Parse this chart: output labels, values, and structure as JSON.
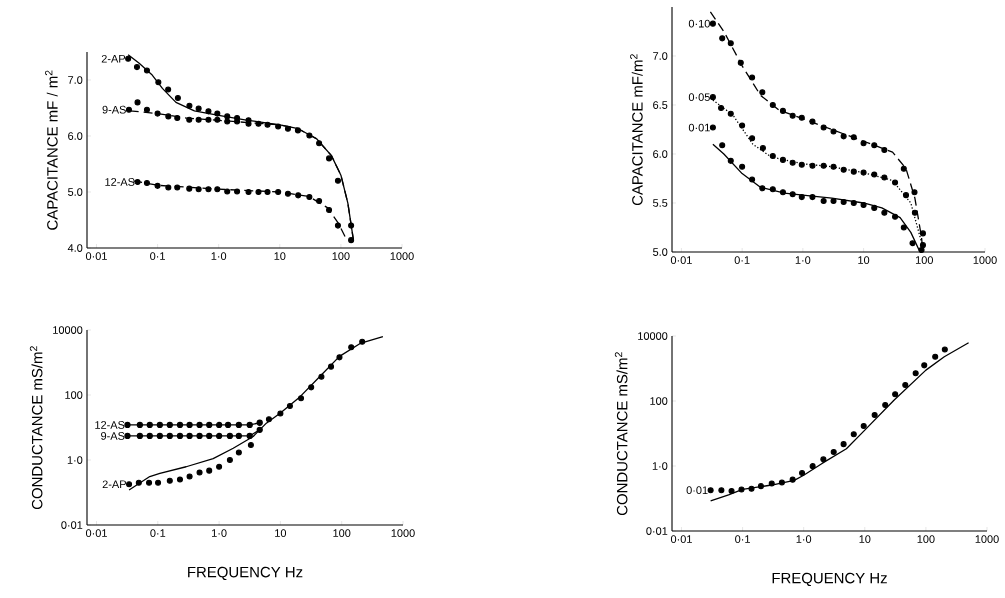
{
  "chart_data": [
    {
      "type": "scatter",
      "log": "x",
      "ylabel": "CAPACITANCE  mF / m$^{2}$",
      "xlim": [
        0.007,
        1000
      ],
      "ylim": [
        4,
        7.5
      ],
      "xticks": [
        {
          "value": 0.01,
          "label": "0·01"
        },
        {
          "value": 0.1,
          "label": "0·1"
        },
        {
          "value": 1,
          "label": "1·0"
        },
        10,
        100,
        1000
      ],
      "yticks": [
        {
          "value": 4,
          "label": "4.0"
        },
        {
          "value": 5,
          "label": "5.0"
        },
        {
          "value": 6,
          "label": "6.0"
        },
        {
          "value": 7,
          "label": "7.0"
        }
      ],
      "series": [
        {
          "name": "2-AP",
          "marker": "circle",
          "color": "#000000",
          "x": [
            0.033,
            0.046,
            0.067,
            0.103,
            0.149,
            0.215,
            0.332,
            0.47,
            0.68,
            0.95,
            1.38,
            2.0,
            3.08,
            4.48,
            6.3,
            9.4,
            13.6,
            19.8,
            30.5,
            44,
            64,
            89.5,
            147
          ],
          "values": [
            7.38,
            7.23,
            7.17,
            6.96,
            6.83,
            6.68,
            6.54,
            6.49,
            6.44,
            6.4,
            6.35,
            6.32,
            6.28,
            6.22,
            6.2,
            6.17,
            6.13,
            6.1,
            6.01,
            5.87,
            5.6,
            5.2,
            4.4
          ]
        },
        {
          "type": "line",
          "line_style": "solid",
          "color": "#000000",
          "x": [
            0.033,
            0.05,
            0.08,
            0.12,
            0.2,
            0.4,
            1,
            3,
            10,
            20,
            40,
            70,
            100,
            130,
            160
          ],
          "values": [
            7.45,
            7.3,
            7.1,
            6.85,
            6.6,
            6.45,
            6.37,
            6.28,
            6.2,
            6.13,
            5.95,
            5.65,
            5.3,
            4.8,
            4.15
          ]
        },
        {
          "name": "9-AS",
          "marker": "circle",
          "color": "#000000",
          "x": [
            0.034,
            0.047,
            0.067,
            0.1,
            0.15,
            0.21,
            0.33,
            0.47,
            0.68,
            0.95,
            1.38,
            2.0,
            3.08,
            147
          ],
          "values": [
            6.47,
            6.6,
            6.47,
            6.4,
            6.35,
            6.32,
            6.29,
            6.29,
            6.29,
            6.29,
            6.26,
            6.26,
            6.22,
            4.14
          ]
        },
        {
          "type": "line",
          "line_style": "dashed",
          "color": "#000000",
          "x": [
            0.035,
            0.1,
            0.3,
            1,
            3,
            10,
            20,
            40,
            70,
            100,
            130,
            160
          ],
          "values": [
            6.45,
            6.4,
            6.32,
            6.28,
            6.24,
            6.2,
            6.13,
            5.95,
            5.65,
            5.3,
            4.8,
            4.15
          ]
        },
        {
          "name": "12-AS",
          "marker": "circle",
          "color": "#000000",
          "x": [
            0.047,
            0.067,
            0.1,
            0.15,
            0.21,
            0.33,
            0.47,
            0.68,
            0.95,
            1.38,
            2.0,
            3.08,
            4.48,
            6.3,
            9.4,
            13.6,
            20,
            30.5,
            44,
            64,
            89.5
          ],
          "values": [
            5.18,
            5.16,
            5.11,
            5.08,
            5.08,
            5.06,
            5.05,
            5.05,
            5.05,
            5.01,
            5.01,
            5.0,
            5.0,
            5.0,
            5.0,
            4.97,
            4.94,
            4.91,
            4.84,
            4.68,
            4.4
          ]
        },
        {
          "type": "line",
          "line_style": "dashed",
          "color": "#000000",
          "x": [
            0.04,
            0.1,
            1,
            10,
            30,
            60,
            90,
            125
          ],
          "values": [
            5.2,
            5.12,
            5.05,
            5.0,
            4.92,
            4.72,
            4.45,
            4.14
          ]
        }
      ]
    },
    {
      "type": "scatter",
      "log": "x",
      "ylabel": "CAPACITANCE  mF/m$^{2}$",
      "xlim": [
        0.007,
        1000
      ],
      "ylim": [
        5,
        7.5
      ],
      "xticks": [
        {
          "value": 0.01,
          "label": "0·01"
        },
        {
          "value": 0.1,
          "label": "0·1"
        },
        {
          "value": 1,
          "label": "1·0"
        },
        10,
        100,
        1000
      ],
      "yticks": [
        {
          "value": 5,
          "label": "5.0"
        },
        {
          "value": 5.5,
          "label": "5.5"
        },
        {
          "value": 6,
          "label": "6.0"
        },
        {
          "value": 6.5,
          "label": "6.5"
        },
        {
          "value": 7,
          "label": "7.0"
        }
      ],
      "series": [
        {
          "name": "0·10",
          "marker": "circle",
          "color": "#000000",
          "x": [
            0.033,
            0.047,
            0.065,
            0.095,
            0.146,
            0.215,
            0.32,
            0.47,
            0.68,
            0.96,
            1.44,
            2.2,
            3.2,
            4.7,
            6.9,
            10,
            15,
            22,
            46,
            69,
            95
          ],
          "values": [
            7.33,
            7.18,
            7.13,
            6.93,
            6.78,
            6.63,
            6.5,
            6.44,
            6.39,
            6.37,
            6.33,
            6.27,
            6.23,
            6.18,
            6.17,
            6.11,
            6.09,
            6.04,
            5.85,
            5.61,
            5.19
          ]
        },
        {
          "type": "line",
          "line_style": "dashed",
          "color": "#000000",
          "x": [
            0.03,
            0.05,
            0.1,
            0.2,
            0.4,
            1,
            3,
            10,
            30,
            50,
            70,
            90,
            95
          ],
          "values": [
            7.45,
            7.25,
            6.9,
            6.6,
            6.45,
            6.36,
            6.25,
            6.13,
            6.02,
            5.85,
            5.55,
            5.15,
            5.0
          ]
        },
        {
          "name": "0·05",
          "marker": "circle",
          "color": "#000000",
          "x": [
            0.033,
            0.045,
            0.065,
            0.1,
            0.146,
            0.22,
            0.32,
            0.47,
            0.68,
            0.96,
            1.44,
            2.2,
            3.2,
            4.7,
            6.9,
            10,
            15,
            22,
            33,
            50,
            70,
            95
          ],
          "values": [
            6.58,
            6.47,
            6.41,
            6.29,
            6.16,
            6.06,
            5.98,
            5.94,
            5.91,
            5.89,
            5.88,
            5.88,
            5.87,
            5.84,
            5.82,
            5.81,
            5.79,
            5.76,
            5.71,
            5.58,
            5.4,
            5.07
          ]
        },
        {
          "type": "line",
          "line_style": "dotted",
          "color": "#000000",
          "x": [
            0.033,
            0.07,
            0.15,
            0.3,
            1,
            3,
            10,
            30,
            60,
            90,
            95
          ],
          "values": [
            6.55,
            6.4,
            6.1,
            5.97,
            5.9,
            5.87,
            5.81,
            5.73,
            5.5,
            5.1,
            5.0
          ]
        },
        {
          "name": "0·01",
          "marker": "circle",
          "color": "#000000",
          "x": [
            0.033,
            0.047,
            0.065,
            0.1,
            0.146,
            0.215,
            0.32,
            0.47,
            0.68,
            0.96,
            1.44,
            2.2,
            3.2,
            4.7,
            6.9,
            10,
            15,
            22,
            33,
            46,
            64,
            90
          ],
          "values": [
            6.27,
            6.09,
            5.93,
            5.87,
            5.74,
            5.65,
            5.64,
            5.61,
            5.59,
            5.56,
            5.56,
            5.52,
            5.52,
            5.51,
            5.5,
            5.48,
            5.45,
            5.4,
            5.36,
            5.25,
            5.09,
            5.02
          ]
        },
        {
          "type": "line",
          "line_style": "solid",
          "color": "#000000",
          "x": [
            0.033,
            0.05,
            0.1,
            0.2,
            0.5,
            1,
            3,
            10,
            20,
            40,
            60,
            85
          ],
          "values": [
            6.1,
            6.0,
            5.8,
            5.66,
            5.6,
            5.58,
            5.55,
            5.5,
            5.45,
            5.35,
            5.2,
            5.0
          ]
        }
      ]
    },
    {
      "type": "scatter",
      "log": "xy",
      "ylabel": "CONDUCTANCE  mS/m$^{2}$",
      "xlabel": "FREQUENCY   Hz",
      "xlim": [
        0.007,
        1000
      ],
      "ylim": [
        0.01,
        10000
      ],
      "xticks": [
        {
          "value": 0.01,
          "label": "0·01"
        },
        {
          "value": 0.1,
          "label": "0·1"
        },
        {
          "value": 1,
          "label": "1·0"
        },
        10,
        100,
        1000
      ],
      "yticks": [
        {
          "value": 0.01,
          "label": "0·01"
        },
        {
          "value": 1,
          "label": "1·0"
        },
        100,
        10000
      ],
      "series": [
        {
          "name": "12-AS",
          "type": "line",
          "line_style": "solid",
          "marker": "circle",
          "color": "#000000",
          "x": [
            0.032,
            0.051,
            0.074,
            0.108,
            0.157,
            0.23,
            0.33,
            0.48,
            0.69,
            1.0,
            1.4,
            2.1,
            3.16,
            4.6
          ],
          "values": [
            12,
            12,
            12,
            12,
            12,
            12,
            12,
            12,
            12,
            12,
            12,
            12,
            12,
            14
          ]
        },
        {
          "name": "9-AS",
          "type": "line",
          "line_style": "solid",
          "marker": "circle",
          "color": "#000000",
          "x": [
            0.032,
            0.051,
            0.074,
            0.108,
            0.157,
            0.23,
            0.33,
            0.48,
            0.69,
            1.0,
            1.5,
            2.1,
            3.16,
            4.6
          ],
          "values": [
            5.5,
            5.5,
            5.5,
            5.5,
            5.5,
            5.5,
            5.5,
            5.5,
            5.5,
            5.5,
            5.5,
            5.5,
            5.5,
            8.5
          ]
        },
        {
          "name": "2-AP",
          "marker": "circle",
          "color": "#000000",
          "x": [
            0.034,
            0.049,
            0.072,
            0.101,
            0.157,
            0.23,
            0.33,
            0.48,
            0.69,
            1.0,
            1.5,
            2.1,
            3.3,
            6.5,
            10,
            14.3,
            21.7,
            31.8,
            46.7,
            67,
            92,
            143,
            216
          ],
          "values": [
            0.18,
            0.2,
            0.2,
            0.2,
            0.23,
            0.25,
            0.31,
            0.41,
            0.47,
            0.62,
            1.0,
            1.7,
            2.9,
            18,
            27,
            46,
            79,
            172,
            366,
            745,
            1440,
            2930,
            4370
          ]
        },
        {
          "type": "line",
          "line_style": "solid",
          "color": "#000000",
          "x": [
            0.034,
            0.074,
            0.108,
            0.29,
            0.8,
            1.7,
            3.6,
            5.9,
            10,
            21,
            44,
            92,
            200,
            470
          ],
          "values": [
            0.12,
            0.31,
            0.39,
            0.62,
            1.1,
            2.3,
            5.3,
            13.6,
            28,
            89,
            370,
            1540,
            3860,
            6300
          ]
        }
      ]
    },
    {
      "type": "scatter",
      "log": "xy",
      "ylabel": "CONDUCTANCE  mS/m$^{2}$",
      "xlabel": "FREQUENCY   Hz",
      "xlim": [
        0.007,
        1000
      ],
      "ylim": [
        0.01,
        10000
      ],
      "xticks": [
        {
          "value": 0.01,
          "label": "0·01"
        },
        {
          "value": 0.1,
          "label": "0·1"
        },
        {
          "value": 1,
          "label": "1·0"
        },
        10,
        100,
        1000
      ],
      "yticks": [
        {
          "value": 0.01,
          "label": "0·01"
        },
        {
          "value": 1,
          "label": "1·0"
        },
        100,
        10000
      ],
      "series": [
        {
          "name": "0·01",
          "marker": "circle",
          "color": "#000000",
          "x": [
            0.03,
            0.045,
            0.066,
            0.096,
            0.14,
            0.2,
            0.3,
            0.44,
            0.66,
            0.94,
            1.4,
            2.1,
            3.1,
            4.5,
            6.6,
            9.6,
            14.5,
            21.6,
            31.4,
            46,
            68,
            94,
            142,
            204
          ],
          "values": [
            0.18,
            0.18,
            0.17,
            0.19,
            0.2,
            0.24,
            0.29,
            0.31,
            0.38,
            0.61,
            0.99,
            1.6,
            2.7,
            4.7,
            9.5,
            17,
            37,
            75,
            162,
            310,
            710,
            1250,
            2290,
            3850
          ]
        },
        {
          "type": "line",
          "line_style": "solid",
          "color": "#000000",
          "x": [
            0.03,
            0.059,
            0.1,
            0.3,
            0.7,
            1,
            2,
            5,
            10,
            30,
            100,
            200,
            500
          ],
          "values": [
            0.084,
            0.13,
            0.19,
            0.26,
            0.36,
            0.52,
            1.2,
            3.4,
            12.7,
            106,
            890,
            2300,
            6200
          ]
        }
      ]
    }
  ]
}
